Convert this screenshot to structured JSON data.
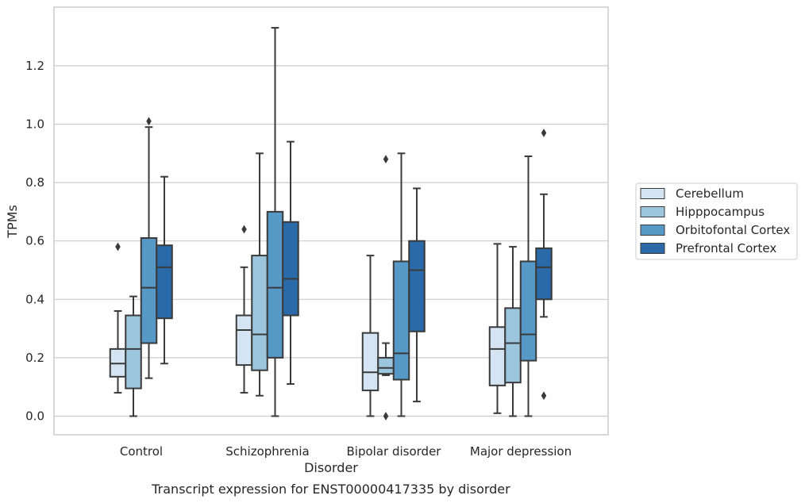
{
  "chart_data": {
    "type": "box",
    "xlabel": "Disorder",
    "ylabel": "TPMs",
    "caption": "Transcript expression for ENST00000417335 by disorder",
    "ylim": [
      -0.065,
      1.39
    ],
    "yticks": [
      "0.0",
      "0.2",
      "0.4",
      "0.6",
      "0.8",
      "1.0",
      "1.2"
    ],
    "ytick_values": [
      0.0,
      0.2,
      0.4,
      0.6,
      0.8,
      1.0,
      1.2
    ],
    "grid": "horizontal",
    "legend_position": "right",
    "categories": [
      "Control",
      "Schizophrenia",
      "Bipolar disorder",
      "Major depression"
    ],
    "series": [
      {
        "name": "Cerebellum",
        "color": "#d5e4f2",
        "boxes": [
          {
            "whislo": 0.08,
            "q1": 0.135,
            "med": 0.18,
            "q3": 0.23,
            "whishi": 0.36,
            "fliers": [
              0.58
            ]
          },
          {
            "whislo": 0.08,
            "q1": 0.175,
            "med": 0.295,
            "q3": 0.345,
            "whishi": 0.51,
            "fliers": [
              0.64
            ]
          },
          {
            "whislo": 0.0,
            "q1": 0.088,
            "med": 0.15,
            "q3": 0.285,
            "whishi": 0.55,
            "fliers": []
          },
          {
            "whislo": 0.01,
            "q1": 0.105,
            "med": 0.23,
            "q3": 0.305,
            "whishi": 0.59,
            "fliers": []
          }
        ]
      },
      {
        "name": "Hipppocampus",
        "color": "#9cc6de",
        "boxes": [
          {
            "whislo": 0.0,
            "q1": 0.095,
            "med": 0.23,
            "q3": 0.345,
            "whishi": 0.41,
            "fliers": []
          },
          {
            "whislo": 0.07,
            "q1": 0.157,
            "med": 0.28,
            "q3": 0.55,
            "whishi": 0.9,
            "fliers": []
          },
          {
            "whislo": 0.14,
            "q1": 0.145,
            "med": 0.165,
            "q3": 0.2,
            "whishi": 0.25,
            "fliers": [
              0.88,
              0.0
            ]
          },
          {
            "whislo": 0.0,
            "q1": 0.115,
            "med": 0.25,
            "q3": 0.37,
            "whishi": 0.58,
            "fliers": []
          }
        ]
      },
      {
        "name": "Orbitofontal Cortex",
        "color": "#5699c7",
        "boxes": [
          {
            "whislo": 0.13,
            "q1": 0.25,
            "med": 0.44,
            "q3": 0.61,
            "whishi": 0.99,
            "fliers": [
              1.01
            ]
          },
          {
            "whislo": 0.0,
            "q1": 0.2,
            "med": 0.44,
            "q3": 0.7,
            "whishi": 1.33,
            "fliers": []
          },
          {
            "whislo": 0.0,
            "q1": 0.125,
            "med": 0.215,
            "q3": 0.53,
            "whishi": 0.9,
            "fliers": []
          },
          {
            "whislo": 0.0,
            "q1": 0.19,
            "med": 0.28,
            "q3": 0.53,
            "whishi": 0.89,
            "fliers": []
          }
        ]
      },
      {
        "name": "Prefrontal Cortex",
        "color": "#2a6aa8",
        "boxes": [
          {
            "whislo": 0.18,
            "q1": 0.335,
            "med": 0.51,
            "q3": 0.585,
            "whishi": 0.82,
            "fliers": []
          },
          {
            "whislo": 0.11,
            "q1": 0.345,
            "med": 0.47,
            "q3": 0.665,
            "whishi": 0.94,
            "fliers": []
          },
          {
            "whislo": 0.05,
            "q1": 0.29,
            "med": 0.5,
            "q3": 0.6,
            "whishi": 0.78,
            "fliers": []
          },
          {
            "whislo": 0.34,
            "q1": 0.4,
            "med": 0.51,
            "q3": 0.575,
            "whishi": 0.76,
            "fliers": [
              0.97,
              0.07
            ]
          }
        ]
      }
    ]
  }
}
